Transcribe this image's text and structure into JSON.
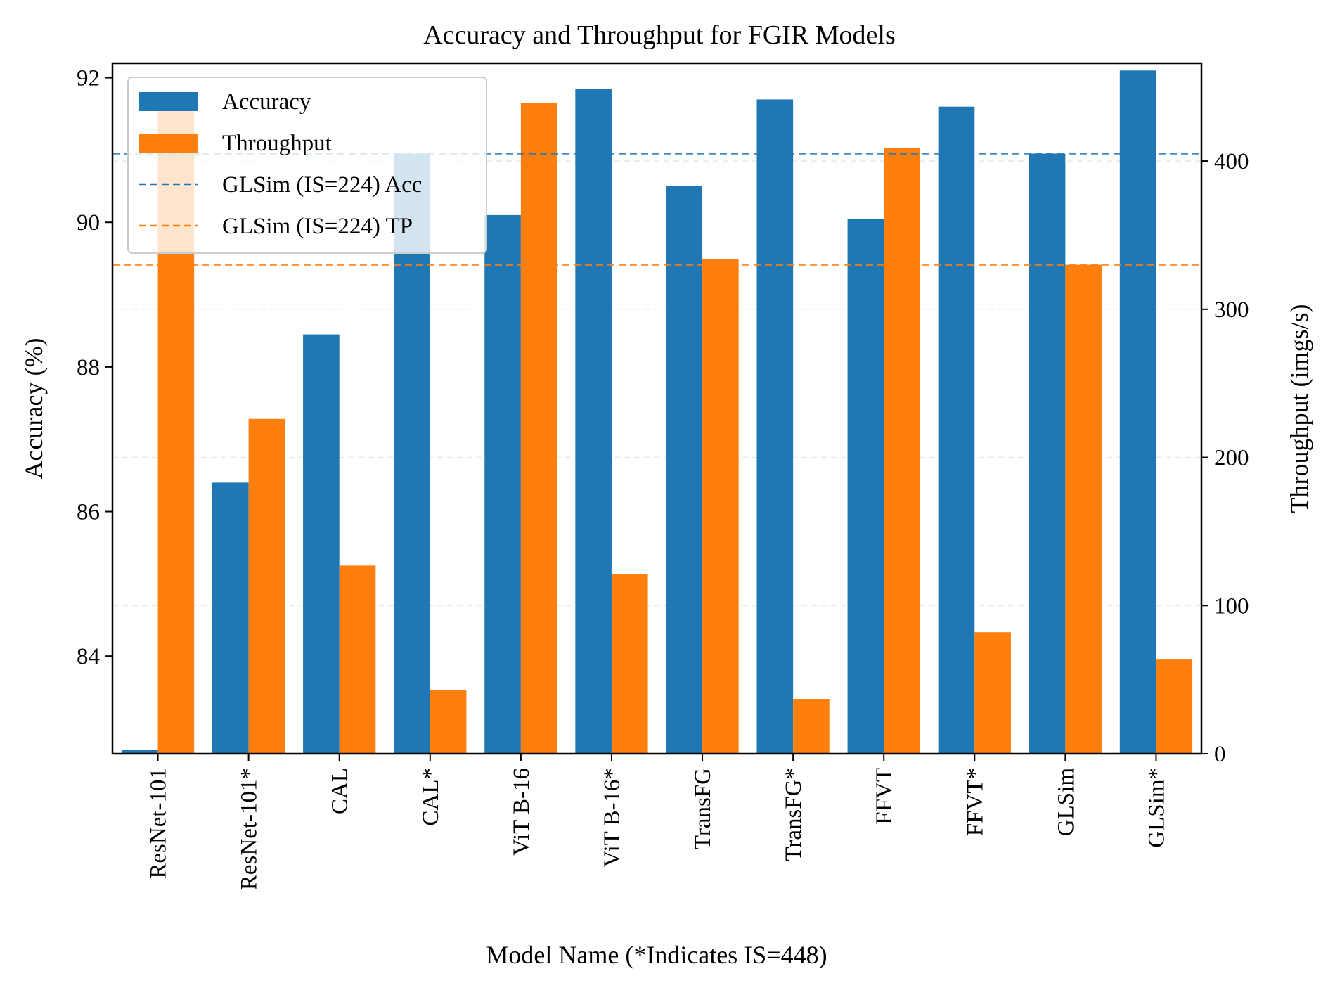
{
  "chart_data": {
    "type": "bar",
    "title": "Accuracy and Throughput for FGIR Models",
    "xlabel": "Model Name (*Indicates IS=448)",
    "ylabel": "Accuracy (%)",
    "ylabel_right": "Throughput (imgs/s)",
    "categories": [
      "ResNet-101",
      "ResNet-101*",
      "CAL",
      "CAL*",
      "ViT B-16",
      "ViT B-16*",
      "TransFG",
      "TransFG*",
      "FFVT",
      "FFVT*",
      "GLSim",
      "GLSim*"
    ],
    "series": [
      {
        "name": "Accuracy",
        "axis": "left",
        "color": "#1f77b4",
        "values": [
          82.7,
          86.4,
          88.45,
          90.95,
          90.1,
          91.85,
          90.5,
          91.7,
          90.05,
          91.6,
          90.95,
          92.1
        ]
      },
      {
        "name": "Throughput",
        "axis": "right",
        "color": "#ff7f0e",
        "values": [
          445,
          226,
          127,
          43,
          439,
          121,
          334,
          37,
          409,
          82,
          330,
          64
        ]
      }
    ],
    "reference_lines": [
      {
        "name": "GLSim (IS=224) Acc",
        "axis": "left",
        "value": 90.95,
        "color": "#1f77b4",
        "style": "dashed"
      },
      {
        "name": "GLSim (IS=224) TP",
        "axis": "right",
        "value": 330,
        "color": "#ff7f0e",
        "style": "dashed"
      }
    ],
    "ylim": [
      82.65,
      92.2
    ],
    "yticks": [
      84,
      86,
      88,
      90,
      92
    ],
    "ylim_right": [
      0,
      466
    ],
    "yticks_right": [
      0,
      100,
      200,
      300,
      400
    ],
    "grid": "horizontal dashed",
    "legend_position": "upper-left"
  }
}
